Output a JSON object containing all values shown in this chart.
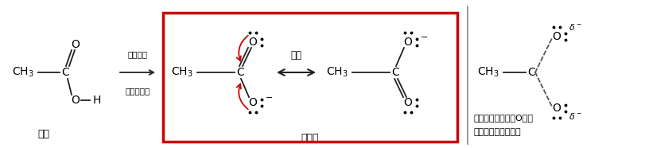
{
  "bg_color": "#ffffff",
  "acetic_acid_label": "乙酸",
  "acetate_label": "乙酸根",
  "arrow_label_top": "失氢质子",
  "arrow_label_bottom": "得到乙酸根",
  "resonance_label": "共振",
  "right_text_line1": "负电荷离域在两个O上，",
  "right_text_line2": "即共振稳定了共轭碱",
  "red_box_color": "#cc0000",
  "line_color": "#222222",
  "text_color": "#000000",
  "red_arrow_color": "#cc0000",
  "dashed_color": "#555555",
  "divider_color": "#888888"
}
